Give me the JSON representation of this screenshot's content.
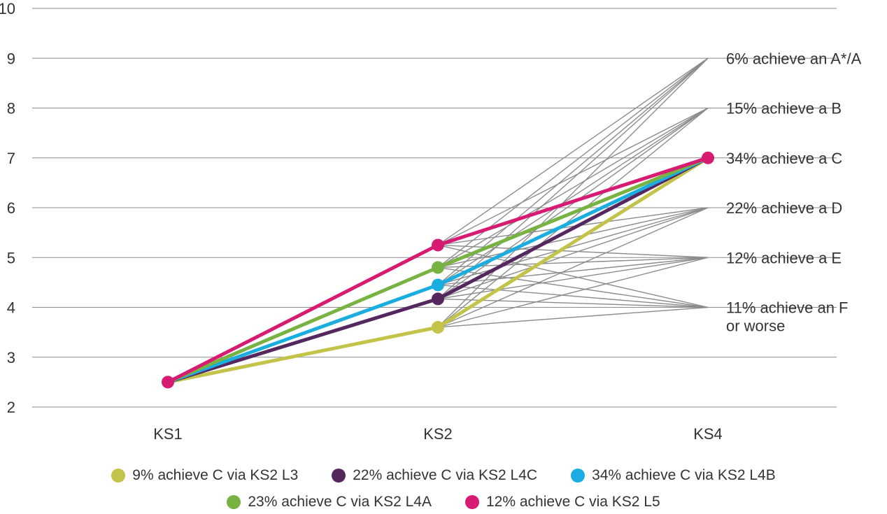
{
  "chart_data": {
    "type": "line",
    "categories": [
      "KS1",
      "KS2",
      "KS4"
    ],
    "ylim": [
      2,
      10
    ],
    "yticks": [
      2,
      3,
      4,
      5,
      6,
      7,
      8,
      9,
      10
    ],
    "grid": true,
    "legend_position": "bottom",
    "title": "",
    "xlabel": "",
    "ylabel": "",
    "series": [
      {
        "name": "9% achieve C via KS2 L3",
        "color": "#c3c34a",
        "values": [
          2.5,
          3.6,
          7
        ]
      },
      {
        "name": "22% achieve C via KS2 L4C",
        "color": "#54275e",
        "values": [
          2.5,
          4.17,
          7
        ]
      },
      {
        "name": "34% achieve C via KS2 L4B",
        "color": "#1aaee0",
        "values": [
          2.5,
          4.45,
          7
        ]
      },
      {
        "name": "23% achieve C via KS2 L4A",
        "color": "#77b243",
        "values": [
          2.5,
          4.8,
          7
        ]
      },
      {
        "name": "12% achieve C via KS2 L5",
        "color": "#d81b72",
        "values": [
          2.5,
          5.25,
          7
        ]
      }
    ],
    "ks4_outcomes": [
      {
        "lines": [
          "6% achieve an A*/A"
        ],
        "level": 9
      },
      {
        "lines": [
          "15% achieve a B"
        ],
        "level": 8
      },
      {
        "lines": [
          "34% achieve a C"
        ],
        "level": 7
      },
      {
        "lines": [
          "22% achieve a D"
        ],
        "level": 6
      },
      {
        "lines": [
          "12% achieve a E"
        ],
        "level": 5
      },
      {
        "lines": [
          "11% achieve an F",
          "or worse"
        ],
        "level": 4
      }
    ],
    "grey_line_color": "#8c8c8c",
    "grid_color": "#8c8c8c"
  }
}
